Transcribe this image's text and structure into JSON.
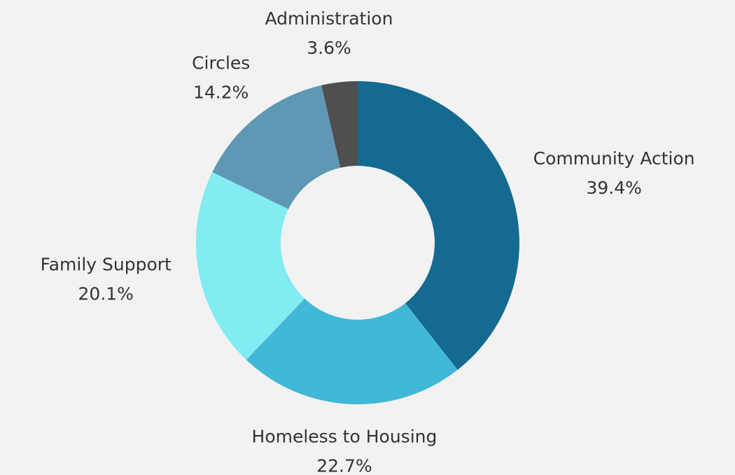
{
  "chart_data": {
    "type": "donut",
    "categories": [
      "Community Action",
      "Homeless to Housing",
      "Family Support",
      "Circles",
      "Administration"
    ],
    "values": [
      39.4,
      22.7,
      20.1,
      14.2,
      3.6
    ],
    "value_labels": [
      "39.4%",
      "22.7%",
      "20.1%",
      "14.2%",
      "3.6%"
    ],
    "colors": [
      "#146a90",
      "#42b8d8",
      "#82ecf2",
      "#5e98b4",
      "#4f4f4f"
    ]
  }
}
